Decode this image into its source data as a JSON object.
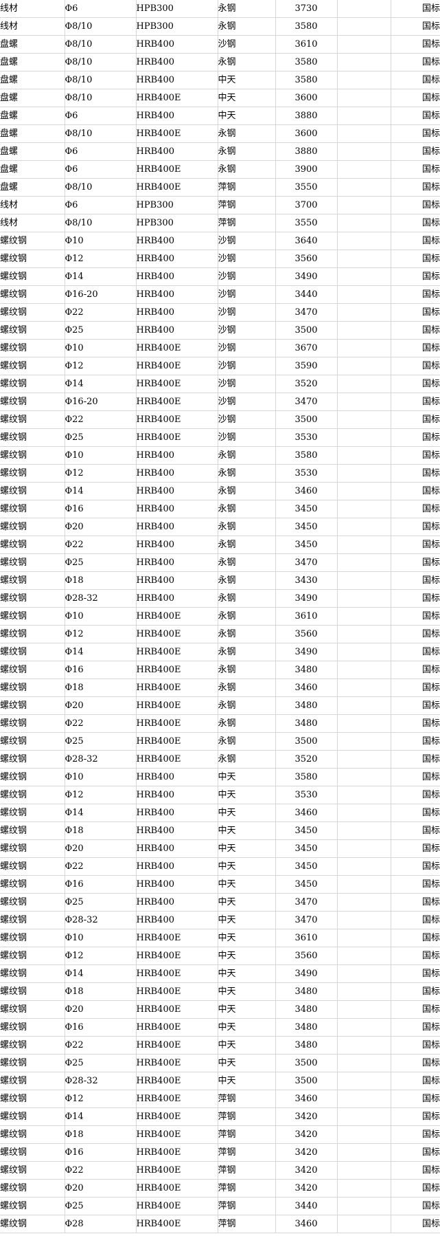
{
  "colors": {
    "background": "#ffffff",
    "gridline": "#d6d6d6",
    "text": "#000000"
  },
  "table": {
    "standard_label": "国标",
    "rows": [
      [
        "线材",
        "Φ6",
        "HPB300",
        "永钢",
        3730,
        "",
        "国标"
      ],
      [
        "线材",
        "Φ8/10",
        "HPB300",
        "永钢",
        3580,
        "",
        "国标"
      ],
      [
        "盘螺",
        "Φ8/10",
        "HRB400",
        "沙钢",
        3610,
        "",
        "国标"
      ],
      [
        "盘螺",
        "Φ8/10",
        "HRB400",
        "永钢",
        3580,
        "",
        "国标"
      ],
      [
        "盘螺",
        "Φ8/10",
        "HRB400",
        "中天",
        3580,
        "",
        "国标"
      ],
      [
        "盘螺",
        "Φ8/10",
        "HRB400E",
        "中天",
        3600,
        "",
        "国标"
      ],
      [
        "盘螺",
        "Φ6",
        "HRB400",
        "中天",
        3880,
        "",
        "国标"
      ],
      [
        "盘螺",
        "Φ8/10",
        "HRB400E",
        "永钢",
        3600,
        "",
        "国标"
      ],
      [
        "盘螺",
        "Φ6",
        "HRB400",
        "永钢",
        3880,
        "",
        "国标"
      ],
      [
        "盘螺",
        "Φ6",
        "HRB400E",
        "永钢",
        3900,
        "",
        "国标"
      ],
      [
        "盘螺",
        "Φ8/10",
        "HRB400E",
        "萍钢",
        3550,
        "",
        "国标"
      ],
      [
        "线材",
        "Φ6",
        "HPB300",
        "萍钢",
        3700,
        "",
        "国标"
      ],
      [
        "线材",
        "Φ8/10",
        "HPB300",
        "萍钢",
        3550,
        "",
        "国标"
      ],
      [
        "螺纹钢",
        "Φ10",
        "HRB400",
        "沙钢",
        3640,
        "",
        "国标"
      ],
      [
        "螺纹钢",
        "Φ12",
        "HRB400",
        "沙钢",
        3560,
        "",
        "国标"
      ],
      [
        "螺纹钢",
        "Φ14",
        "HRB400",
        "沙钢",
        3490,
        "",
        "国标"
      ],
      [
        "螺纹钢",
        "Φ16-20",
        "HRB400",
        "沙钢",
        3440,
        "",
        "国标"
      ],
      [
        "螺纹钢",
        "Φ22",
        "HRB400",
        "沙钢",
        3470,
        "",
        "国标"
      ],
      [
        "螺纹钢",
        "Φ25",
        "HRB400",
        "沙钢",
        3500,
        "",
        "国标"
      ],
      [
        "螺纹钢",
        "Φ10",
        "HRB400E",
        "沙钢",
        3670,
        "",
        "国标"
      ],
      [
        "螺纹钢",
        "Φ12",
        "HRB400E",
        "沙钢",
        3590,
        "",
        "国标"
      ],
      [
        "螺纹钢",
        "Φ14",
        "HRB400E",
        "沙钢",
        3520,
        "",
        "国标"
      ],
      [
        "螺纹钢",
        "Φ16-20",
        "HRB400E",
        "沙钢",
        3470,
        "",
        "国标"
      ],
      [
        "螺纹钢",
        "Φ22",
        "HRB400E",
        "沙钢",
        3500,
        "",
        "国标"
      ],
      [
        "螺纹钢",
        "Φ25",
        "HRB400E",
        "沙钢",
        3530,
        "",
        "国标"
      ],
      [
        "螺纹钢",
        "Φ10",
        "HRB400",
        "永钢",
        3580,
        "",
        "国标"
      ],
      [
        "螺纹钢",
        "Φ12",
        "HRB400",
        "永钢",
        3530,
        "",
        "国标"
      ],
      [
        "螺纹钢",
        "Φ14",
        "HRB400",
        "永钢",
        3460,
        "",
        "国标"
      ],
      [
        "螺纹钢",
        "Φ16",
        "HRB400",
        "永钢",
        3450,
        "",
        "国标"
      ],
      [
        "螺纹钢",
        "Φ20",
        "HRB400",
        "永钢",
        3450,
        "",
        "国标"
      ],
      [
        "螺纹钢",
        "Φ22",
        "HRB400",
        "永钢",
        3450,
        "",
        "国标"
      ],
      [
        "螺纹钢",
        "Φ25",
        "HRB400",
        "永钢",
        3470,
        "",
        "国标"
      ],
      [
        "螺纹钢",
        "Φ18",
        "HRB400",
        "永钢",
        3430,
        "",
        "国标"
      ],
      [
        "螺纹钢",
        "Φ28-32",
        "HRB400",
        "永钢",
        3490,
        "",
        "国标"
      ],
      [
        "螺纹钢",
        "Φ10",
        "HRB400E",
        "永钢",
        3610,
        "",
        "国标"
      ],
      [
        "螺纹钢",
        "Φ12",
        "HRB400E",
        "永钢",
        3560,
        "",
        "国标"
      ],
      [
        "螺纹钢",
        "Φ14",
        "HRB400E",
        "永钢",
        3490,
        "",
        "国标"
      ],
      [
        "螺纹钢",
        "Φ16",
        "HRB400E",
        "永钢",
        3480,
        "",
        "国标"
      ],
      [
        "螺纹钢",
        "Φ18",
        "HRB400E",
        "永钢",
        3460,
        "",
        "国标"
      ],
      [
        "螺纹钢",
        "Φ20",
        "HRB400E",
        "永钢",
        3480,
        "",
        "国标"
      ],
      [
        "螺纹钢",
        "Φ22",
        "HRB400E",
        "永钢",
        3480,
        "",
        "国标"
      ],
      [
        "螺纹钢",
        "Φ25",
        "HRB400E",
        "永钢",
        3500,
        "",
        "国标"
      ],
      [
        "螺纹钢",
        "Φ28-32",
        "HRB400E",
        "永钢",
        3520,
        "",
        "国标"
      ],
      [
        "螺纹钢",
        "Φ10",
        "HRB400",
        "中天",
        3580,
        "",
        "国标"
      ],
      [
        "螺纹钢",
        "Φ12",
        "HRB400",
        "中天",
        3530,
        "",
        "国标"
      ],
      [
        "螺纹钢",
        "Φ14",
        "HRB400",
        "中天",
        3460,
        "",
        "国标"
      ],
      [
        "螺纹钢",
        "Φ18",
        "HRB400",
        "中天",
        3450,
        "",
        "国标"
      ],
      [
        "螺纹钢",
        "Φ20",
        "HRB400",
        "中天",
        3450,
        "",
        "国标"
      ],
      [
        "螺纹钢",
        "Φ22",
        "HRB400",
        "中天",
        3450,
        "",
        "国标"
      ],
      [
        "螺纹钢",
        "Φ16",
        "HRB400",
        "中天",
        3450,
        "",
        "国标"
      ],
      [
        "螺纹钢",
        "Φ25",
        "HRB400",
        "中天",
        3470,
        "",
        "国标"
      ],
      [
        "螺纹钢",
        "Φ28-32",
        "HRB400",
        "中天",
        3470,
        "",
        "国标"
      ],
      [
        "螺纹钢",
        "Φ10",
        "HRB400E",
        "中天",
        3610,
        "",
        "国标"
      ],
      [
        "螺纹钢",
        "Φ12",
        "HRB400E",
        "中天",
        3560,
        "",
        "国标"
      ],
      [
        "螺纹钢",
        "Φ14",
        "HRB400E",
        "中天",
        3490,
        "",
        "国标"
      ],
      [
        "螺纹钢",
        "Φ18",
        "HRB400E",
        "中天",
        3480,
        "",
        "国标"
      ],
      [
        "螺纹钢",
        "Φ20",
        "HRB400E",
        "中天",
        3480,
        "",
        "国标"
      ],
      [
        "螺纹钢",
        "Φ16",
        "HRB400E",
        "中天",
        3480,
        "",
        "国标"
      ],
      [
        "螺纹钢",
        "Φ22",
        "HRB400E",
        "中天",
        3480,
        "",
        "国标"
      ],
      [
        "螺纹钢",
        "Φ25",
        "HRB400E",
        "中天",
        3500,
        "",
        "国标"
      ],
      [
        "螺纹钢",
        "Φ28-32",
        "HRB400E",
        "中天",
        3500,
        "",
        "国标"
      ],
      [
        "螺纹钢",
        "Φ12",
        "HRB400E",
        "萍钢",
        3460,
        "",
        "国标"
      ],
      [
        "螺纹钢",
        "Φ14",
        "HRB400E",
        "萍钢",
        3420,
        "",
        "国标"
      ],
      [
        "螺纹钢",
        "Φ18",
        "HRB400E",
        "萍钢",
        3420,
        "",
        "国标"
      ],
      [
        "螺纹钢",
        "Φ16",
        "HRB400E",
        "萍钢",
        3420,
        "",
        "国标"
      ],
      [
        "螺纹钢",
        "Φ22",
        "HRB400E",
        "萍钢",
        3420,
        "",
        "国标"
      ],
      [
        "螺纹钢",
        "Φ20",
        "HRB400E",
        "萍钢",
        3420,
        "",
        "国标"
      ],
      [
        "螺纹钢",
        "Φ25",
        "HRB400E",
        "萍钢",
        3440,
        "",
        "国标"
      ],
      [
        "螺纹钢",
        "Φ28",
        "HRB400E",
        "萍钢",
        3460,
        "",
        "国标"
      ]
    ]
  }
}
